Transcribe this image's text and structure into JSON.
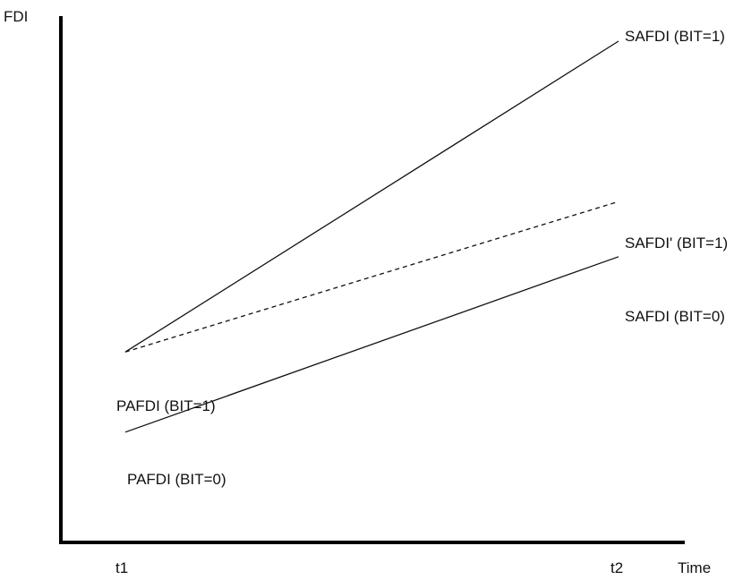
{
  "chart_data": {
    "type": "line",
    "ylabel": "FDI",
    "xlabel": "Time",
    "categories": [
      "t1",
      "t2"
    ],
    "series": [
      {
        "name": "BIT=1",
        "start_label": "PAFDI (BIT=1)",
        "end_label": "SAFDI (BIT=1)",
        "values": [
          38,
          100
        ],
        "style": "solid"
      },
      {
        "name": "BIT=1 (alt)",
        "end_label": "SAFDI' (BIT=1)",
        "values": [
          38,
          68
        ],
        "style": "dashed"
      },
      {
        "name": "BIT=0",
        "start_label": "PAFDI (BIT=0)",
        "end_label": "SAFDI (BIT=0)",
        "values": [
          22,
          57
        ],
        "style": "solid"
      }
    ],
    "ylim": [
      0,
      100
    ],
    "grid": false,
    "legend": "none",
    "colors": {
      "axis": "#000000",
      "line": "#111111",
      "text": "#111111"
    }
  }
}
